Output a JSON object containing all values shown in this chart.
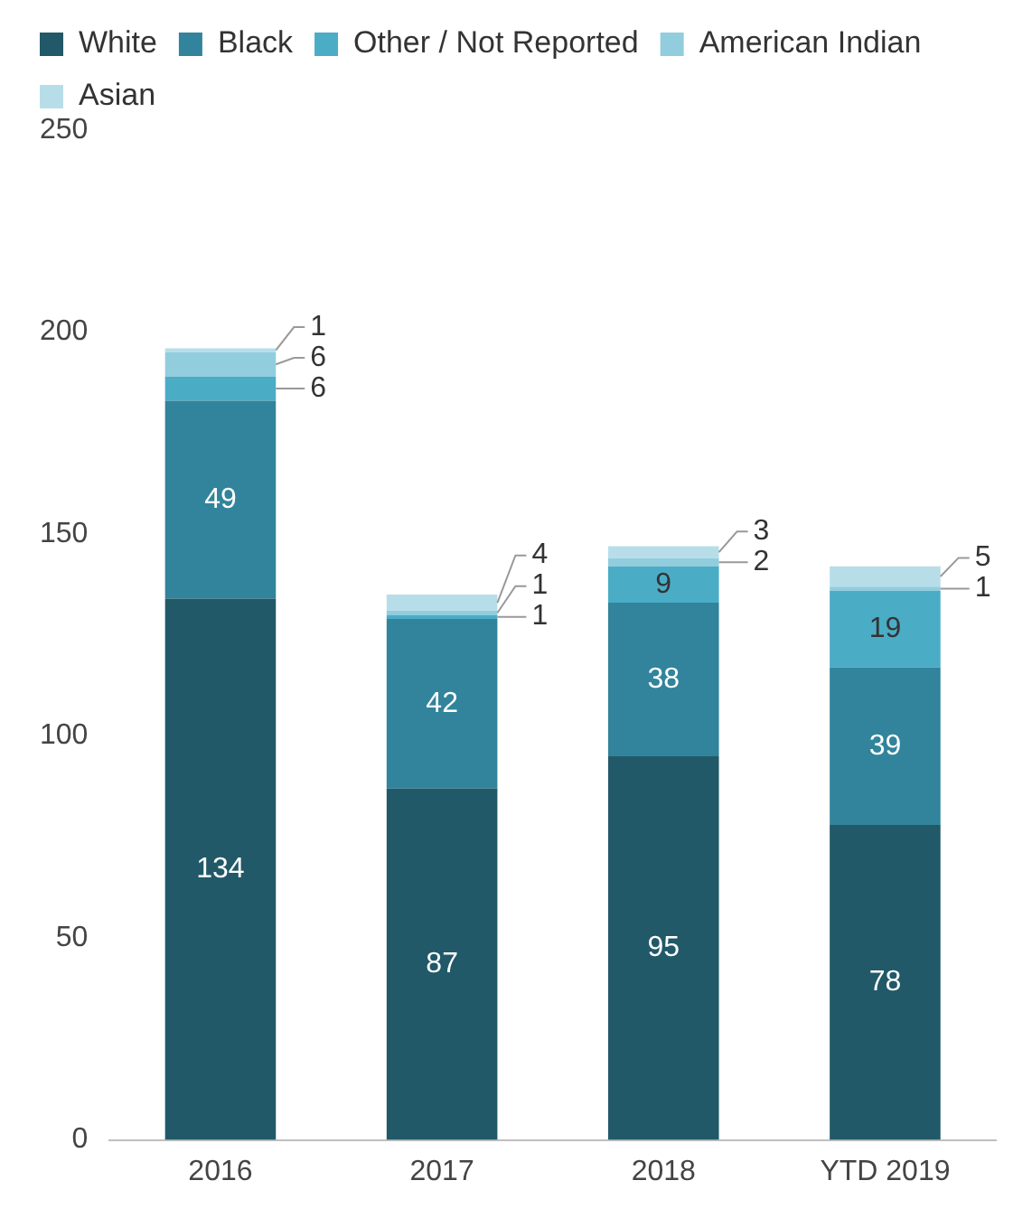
{
  "chart_data": {
    "type": "bar",
    "stacked": true,
    "categories": [
      "2016",
      "2017",
      "2018",
      "YTD 2019"
    ],
    "series": [
      {
        "name": "White",
        "color": "#215968",
        "values": [
          134,
          87,
          95,
          78
        ]
      },
      {
        "name": "Black",
        "color": "#31849b",
        "values": [
          49,
          42,
          38,
          39
        ]
      },
      {
        "name": "Other / Not Reported",
        "color": "#4bacc6",
        "values": [
          6,
          1,
          9,
          19
        ]
      },
      {
        "name": "American Indian",
        "color": "#92cddd",
        "values": [
          6,
          1,
          2,
          1
        ]
      },
      {
        "name": "Asian",
        "color": "#b7dee8",
        "values": [
          1,
          4,
          3,
          5
        ]
      }
    ],
    "ylim": [
      0,
      250
    ],
    "yticks": [
      0,
      50,
      100,
      150,
      200,
      250
    ],
    "grid": false,
    "legend": "top",
    "data_labels": true
  }
}
